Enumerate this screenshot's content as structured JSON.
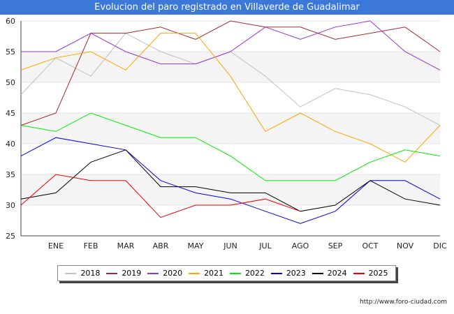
{
  "title": "Evolucion del paro registrado en Villaverde de Guadalimar",
  "source": "http://www.foro-ciudad.com",
  "chart_data": {
    "type": "line",
    "title": "Evolucion del paro registrado en Villaverde de Guadalimar",
    "xlabel": "",
    "ylabel": "",
    "categories": [
      "",
      "ENE",
      "FEB",
      "MAR",
      "ABR",
      "MAY",
      "JUN",
      "JUL",
      "AGO",
      "SEP",
      "OCT",
      "NOV",
      "DIC"
    ],
    "ylim": [
      25,
      60
    ],
    "yticks": [
      25,
      30,
      35,
      40,
      45,
      50,
      55,
      60
    ],
    "grid": "horizontal bands",
    "legend_position": "bottom",
    "series": [
      {
        "name": "2018",
        "color": "#c0c0c0",
        "values": [
          48,
          54,
          51,
          58,
          55,
          53,
          55,
          51,
          46,
          49,
          48,
          46,
          43
        ]
      },
      {
        "name": "2019",
        "color": "#a52a2a",
        "values": [
          43,
          45,
          58,
          58,
          59,
          57,
          60,
          59,
          59,
          57,
          58,
          59,
          55
        ]
      },
      {
        "name": "2020",
        "color": "#9932cc",
        "values": [
          55,
          55,
          58,
          55,
          53,
          53,
          55,
          59,
          57,
          59,
          60,
          55,
          52
        ]
      },
      {
        "name": "2021",
        "color": "#ffa500",
        "values": [
          52,
          54,
          55,
          52,
          58,
          58,
          51,
          42,
          45,
          42,
          40,
          37,
          43
        ]
      },
      {
        "name": "2022",
        "color": "#00ee00",
        "values": [
          43,
          42,
          45,
          43,
          41,
          41,
          38,
          34,
          34,
          34,
          37,
          39,
          38
        ]
      },
      {
        "name": "2023",
        "color": "#0000ee",
        "values": [
          38,
          41,
          40,
          39,
          34,
          32,
          31,
          29,
          27,
          29,
          34,
          34,
          31
        ]
      },
      {
        "name": "2024",
        "color": "#000000",
        "values": [
          31,
          32,
          37,
          39,
          33,
          33,
          32,
          32,
          29,
          30,
          34,
          31,
          30
        ]
      },
      {
        "name": "2025",
        "color": "#ee0000",
        "values": [
          30,
          35,
          34,
          34,
          28,
          30,
          30,
          31,
          29,
          null,
          null,
          null,
          null
        ]
      }
    ]
  }
}
